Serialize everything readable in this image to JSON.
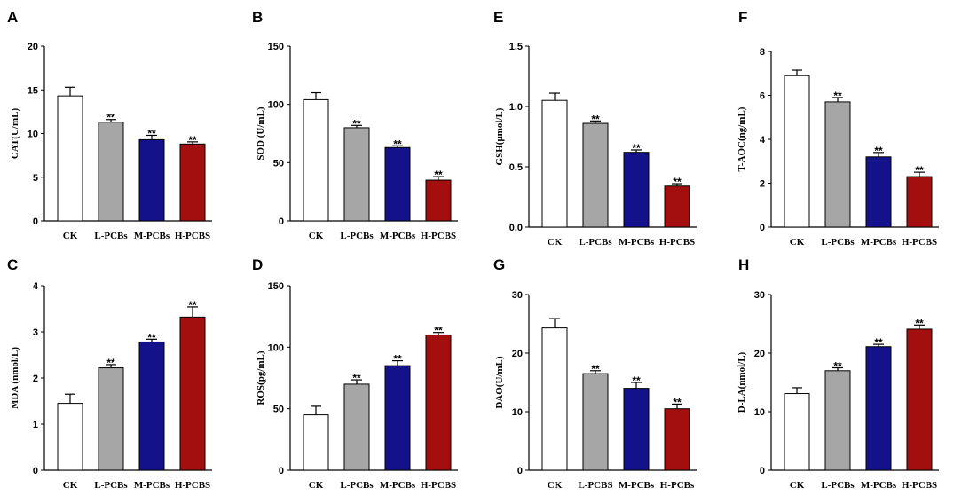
{
  "colors": {
    "CK": "#ffffff",
    "L": "#a6a6a6",
    "M": "#13128a",
    "H": "#a30e0e"
  },
  "chart_data": [
    {
      "letter": "A",
      "type": "bar",
      "ylabel": "CAT(U/mL)",
      "ylim": [
        0,
        20
      ],
      "yticks": [
        "0",
        "5",
        "10",
        "15",
        "20"
      ],
      "categories": [
        "CK",
        "L-PCBs",
        "M-PCBs",
        "H-PCBS"
      ],
      "values": [
        14.3,
        11.3,
        9.3,
        8.8
      ],
      "errors": [
        1.0,
        0.3,
        0.5,
        0.25
      ],
      "significance": [
        "",
        "**",
        "**",
        "**"
      ]
    },
    {
      "letter": "B",
      "type": "bar",
      "ylabel": "SOD (U/mL)",
      "ylim": [
        0,
        150
      ],
      "yticks": [
        "0",
        "50",
        "100",
        "150"
      ],
      "categories": [
        "CK",
        "L-PCBs",
        "M-PCBs",
        "H-PCBS"
      ],
      "values": [
        104,
        80,
        63,
        35
      ],
      "errors": [
        6,
        2,
        1.5,
        3
      ],
      "significance": [
        "",
        "**",
        "**",
        "**"
      ]
    },
    {
      "letter": "E",
      "type": "bar",
      "ylabel": "GSH(μmol/L)",
      "ylim": [
        0,
        1.5
      ],
      "yticks": [
        "0.0",
        "0.5",
        "1.0",
        "1.5"
      ],
      "categories": [
        "CK",
        "L-PCBs",
        "M-PCBs",
        "H-PCBS"
      ],
      "values": [
        1.05,
        0.86,
        0.62,
        0.34
      ],
      "errors": [
        0.06,
        0.02,
        0.02,
        0.02
      ],
      "significance": [
        "",
        "**",
        "**",
        "**"
      ]
    },
    {
      "letter": "F",
      "type": "bar",
      "ylabel": "T-AOC(ng/mL)",
      "ylim": [
        0,
        8
      ],
      "yticks": [
        "0",
        "2",
        "4",
        "6",
        "8"
      ],
      "categories": [
        "CK",
        "L-PCBs",
        "M-PCBs",
        "H-PCBS"
      ],
      "values": [
        6.9,
        5.7,
        3.2,
        2.3
      ],
      "errors": [
        0.25,
        0.2,
        0.2,
        0.2
      ],
      "significance": [
        "",
        "**",
        "**",
        "**"
      ]
    },
    {
      "letter": "C",
      "type": "bar",
      "ylabel": "MDA (nmol/L)",
      "ylim": [
        0,
        4
      ],
      "yticks": [
        "0",
        "1",
        "2",
        "3",
        "4"
      ],
      "categories": [
        "CK",
        "L-PCBs",
        "M-PCBs",
        "H-PCBS"
      ],
      "values": [
        1.45,
        2.22,
        2.78,
        3.32
      ],
      "errors": [
        0.2,
        0.07,
        0.06,
        0.22
      ],
      "significance": [
        "",
        "**",
        "**",
        "**"
      ]
    },
    {
      "letter": "D",
      "type": "bar",
      "ylabel": "ROS(pg/mL)",
      "ylim": [
        0,
        150
      ],
      "yticks": [
        "0",
        "50",
        "100",
        "150"
      ],
      "categories": [
        "CK",
        "L-PCBs",
        "M-PCBs",
        "H-PCBS"
      ],
      "values": [
        45,
        70,
        85,
        110
      ],
      "errors": [
        7,
        3.5,
        4,
        2
      ],
      "significance": [
        "",
        "**",
        "**",
        "**"
      ]
    },
    {
      "letter": "G",
      "type": "bar",
      "ylabel": "DAO(U/mL)",
      "ylim": [
        0,
        30
      ],
      "yticks": [
        "0",
        "10",
        "20",
        "30"
      ],
      "categories": [
        "CK",
        "L-PCBS",
        "M-PCBs",
        "H-PCBs"
      ],
      "values": [
        24.3,
        16.5,
        14.0,
        10.5
      ],
      "errors": [
        1.6,
        0.5,
        1.0,
        0.8
      ],
      "significance": [
        "",
        "**",
        "**",
        "**"
      ]
    },
    {
      "letter": "H",
      "type": "bar",
      "ylabel": "D-LA(nmol/L)",
      "ylim": [
        0,
        30
      ],
      "yticks": [
        "0",
        "10",
        "20",
        "30"
      ],
      "categories": [
        "CK",
        "L-PCBs",
        "M-PCBs",
        "H-PCBS"
      ],
      "values": [
        13.1,
        17.0,
        21.1,
        24.1
      ],
      "errors": [
        1.0,
        0.5,
        0.4,
        0.7
      ],
      "significance": [
        "",
        "**",
        "**",
        "**"
      ]
    }
  ]
}
